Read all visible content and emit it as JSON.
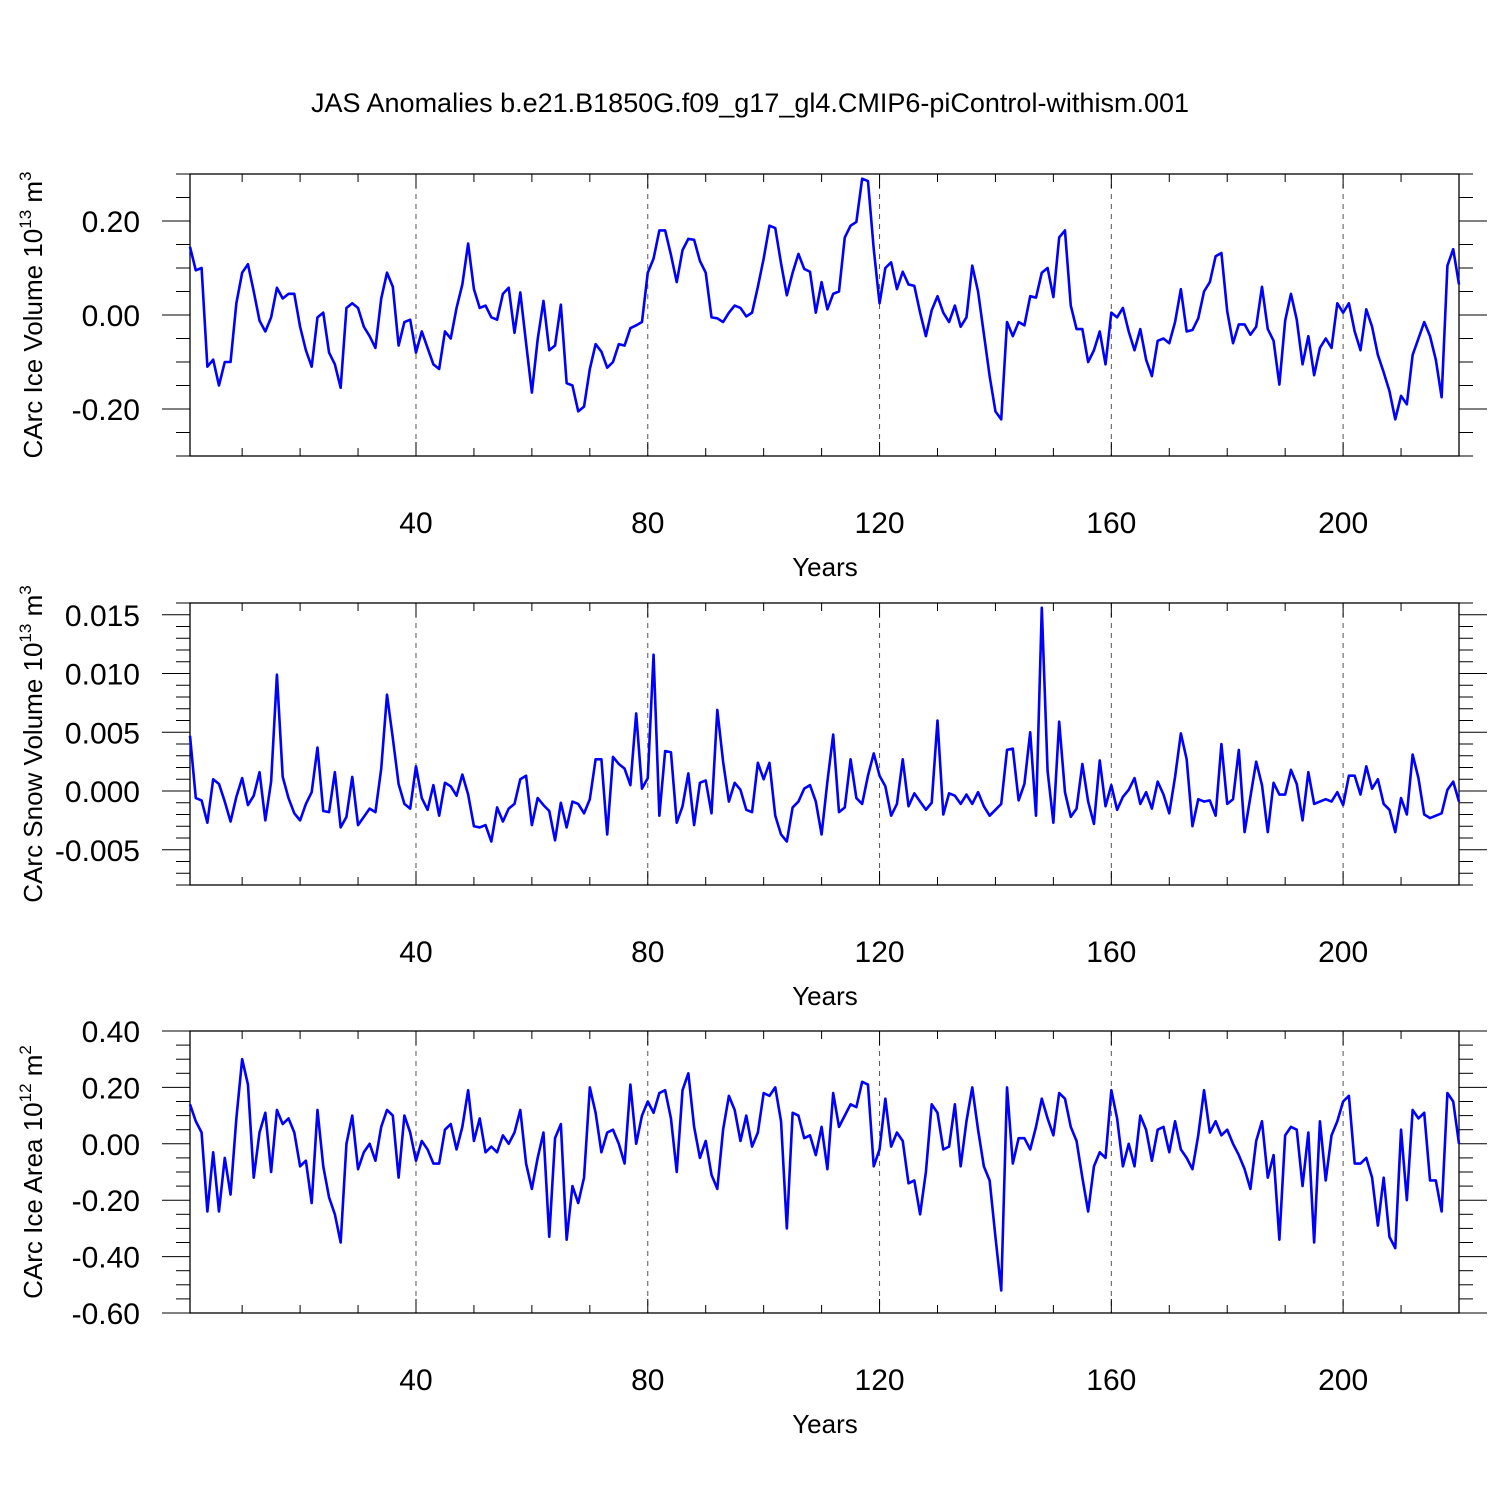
{
  "title": "JAS Anomalies b.e21.B1850G.f09_g17_gl4.CMIP6-piControl-withism.001",
  "line_color": "#0000ff",
  "chart_data": [
    {
      "type": "line",
      "ylabel": "CArc Ice Volume 10",
      "ylabel_sup": "13",
      "ylabel_unit": " m",
      "ylabel_unit_sup": "3",
      "xlabel": "Years",
      "xlim": [
        1,
        220
      ],
      "ylim": [
        -0.3,
        0.3
      ],
      "xticks": [
        40,
        80,
        120,
        160,
        200
      ],
      "xtick_labels": [
        "40",
        "80",
        "120",
        "160",
        "200"
      ],
      "yticks": [
        -0.2,
        0.0,
        0.2
      ],
      "ytick_labels": [
        "-0.20",
        "0.00",
        "0.20"
      ],
      "yminor_step": 0.05,
      "xminor_step": 10,
      "series": [
        {
          "x_start": 1,
          "values": [
            0.145,
            0.095,
            0.1,
            -0.11,
            -0.095,
            -0.15,
            -0.1,
            -0.1,
            0.025,
            0.09,
            0.108,
            0.05,
            -0.012,
            -0.035,
            -0.005,
            0.058,
            0.035,
            0.045,
            0.045,
            -0.025,
            -0.075,
            -0.11,
            -0.005,
            0.005,
            -0.08,
            -0.105,
            -0.155,
            0.015,
            0.025,
            0.015,
            -0.025,
            -0.045,
            -0.07,
            0.035,
            0.09,
            0.06,
            -0.065,
            -0.015,
            -0.01,
            -0.08,
            -0.035,
            -0.07,
            -0.105,
            -0.115,
            -0.035,
            -0.05,
            0.015,
            0.065,
            0.152,
            0.055,
            0.015,
            0.02,
            -0.005,
            -0.01,
            0.045,
            0.058,
            -0.038,
            0.048,
            -0.06,
            -0.165,
            -0.052,
            0.03,
            -0.075,
            -0.065,
            0.022,
            -0.145,
            -0.15,
            -0.205,
            -0.195,
            -0.115,
            -0.062,
            -0.078,
            -0.112,
            -0.1,
            -0.062,
            -0.065,
            -0.028,
            -0.022,
            -0.015,
            0.09,
            0.12,
            0.18,
            0.18,
            0.128,
            0.07,
            0.138,
            0.162,
            0.16,
            0.115,
            0.09,
            -0.005,
            -0.007,
            -0.015,
            0.005,
            0.02,
            0.015,
            -0.003,
            0.005,
            0.06,
            0.12,
            0.19,
            0.185,
            0.11,
            0.042,
            0.09,
            0.13,
            0.098,
            0.092,
            0.005,
            0.07,
            0.012,
            0.045,
            0.05,
            0.165,
            0.19,
            0.198,
            0.29,
            0.285,
            0.14,
            0.025,
            0.1,
            0.112,
            0.055,
            0.092,
            0.065,
            0.062,
            0.005,
            -0.045,
            0.01,
            0.04,
            0.005,
            -0.015,
            0.02,
            -0.025,
            -0.005,
            0.105,
            0.05,
            -0.04,
            -0.13,
            -0.205,
            -0.222,
            -0.015,
            -0.045,
            -0.015,
            -0.022,
            0.04,
            0.037,
            0.09,
            0.1,
            0.038,
            0.165,
            0.18,
            0.02,
            -0.03,
            -0.03,
            -0.1,
            -0.075,
            -0.035,
            -0.105,
            0.005,
            -0.005,
            0.015,
            -0.035,
            -0.075,
            -0.03,
            -0.095,
            -0.13,
            -0.055,
            -0.05,
            -0.06,
            -0.015,
            0.055,
            -0.035,
            -0.032,
            -0.007,
            0.05,
            0.07,
            0.125,
            0.132,
            0.008,
            -0.06,
            -0.02,
            -0.02,
            -0.042,
            -0.025,
            0.06,
            -0.03,
            -0.055,
            -0.148,
            -0.012,
            0.045,
            -0.01,
            -0.105,
            -0.045,
            -0.128,
            -0.07,
            -0.05,
            -0.07,
            0.025,
            0.005,
            0.025,
            -0.035,
            -0.075,
            0.012,
            -0.025,
            -0.085,
            -0.122,
            -0.162,
            -0.222,
            -0.172,
            -0.19,
            -0.085,
            -0.05,
            -0.015,
            -0.045,
            -0.095,
            -0.175,
            0.105,
            0.14,
            0.065
          ]
        }
      ]
    },
    {
      "type": "line",
      "ylabel": "CArc Snow Volume 10",
      "ylabel_sup": "13",
      "ylabel_unit": " m",
      "ylabel_unit_sup": "3",
      "xlabel": "Years",
      "xlim": [
        1,
        220
      ],
      "ylim": [
        -0.008,
        0.016
      ],
      "xticks": [
        40,
        80,
        120,
        160,
        200
      ],
      "xtick_labels": [
        "40",
        "80",
        "120",
        "160",
        "200"
      ],
      "yticks": [
        -0.005,
        0.0,
        0.005,
        0.01,
        0.015
      ],
      "ytick_labels": [
        "-0.005",
        "0.000",
        "0.005",
        "0.010",
        "0.015"
      ],
      "yminor_step": 0.001,
      "xminor_step": 10,
      "series": [
        {
          "x_start": 1,
          "values": [
            0.0047,
            -0.0006,
            -0.0008,
            -0.0027,
            0.001,
            0.0006,
            -0.0009,
            -0.0026,
            -0.0005,
            0.0011,
            -0.0012,
            -0.0004,
            0.0016,
            -0.0025,
            0.0008,
            0.0099,
            0.0012,
            -0.0006,
            -0.0019,
            -0.0025,
            -0.0011,
            -0.0001,
            0.0037,
            -0.0017,
            -0.0018,
            0.0016,
            -0.0031,
            -0.0022,
            0.0012,
            -0.0029,
            -0.0022,
            -0.0015,
            -0.0018,
            0.0019,
            0.0082,
            0.0045,
            0.0006,
            -0.0011,
            -0.0015,
            0.0021,
            -0.0006,
            -0.0016,
            0.0005,
            -0.0021,
            0.0007,
            0.0004,
            -0.0004,
            0.0014,
            -0.0003,
            -0.003,
            -0.0031,
            -0.0029,
            -0.0043,
            -0.0014,
            -0.0026,
            -0.0015,
            -0.0011,
            0.001,
            0.0013,
            -0.0029,
            -0.0006,
            -0.0012,
            -0.0017,
            -0.0042,
            -0.001,
            -0.0031,
            -0.0009,
            -0.0011,
            -0.0019,
            -0.0007,
            0.0027,
            0.0027,
            -0.0037,
            0.0029,
            0.0023,
            0.0019,
            0.0005,
            0.0066,
            0.0002,
            0.0011,
            0.0116,
            -0.0021,
            0.0034,
            0.0033,
            -0.0027,
            -0.0013,
            0.0015,
            -0.0029,
            0.0007,
            0.0009,
            -0.0019,
            0.0069,
            0.0025,
            -0.0009,
            0.0007,
            0.0001,
            -0.0016,
            -0.0018,
            0.0024,
            0.001,
            0.0024,
            -0.0021,
            -0.0037,
            -0.0043,
            -0.0014,
            -0.0009,
            0.0002,
            0.0005,
            -0.0009,
            -0.0037,
            0.0008,
            0.0048,
            -0.0018,
            -0.0014,
            0.0027,
            -0.0006,
            -0.0011,
            0.0013,
            0.0032,
            0.0013,
            0.0004,
            -0.0021,
            -0.0011,
            0.0027,
            -0.0013,
            -0.0002,
            -0.0009,
            -0.0016,
            -0.001,
            0.006,
            -0.002,
            -0.0002,
            -0.0004,
            -0.0011,
            -0.0003,
            -0.0011,
            -0.0001,
            -0.0013,
            -0.0021,
            -0.0016,
            -0.0011,
            0.0035,
            0.0036,
            -0.0008,
            0.0006,
            0.005,
            -0.0021,
            0.0156,
            0.0017,
            -0.0027,
            0.0059,
            -0.0001,
            -0.0022,
            -0.0015,
            0.0023,
            -0.0009,
            -0.0028,
            0.0026,
            -0.0013,
            0.0005,
            -0.0016,
            -0.0005,
            0.0001,
            0.0011,
            -0.0011,
            -0.0001,
            -0.0015,
            0.0008,
            -0.0003,
            -0.0019,
            0.0012,
            0.0049,
            0.0027,
            -0.003,
            -0.0007,
            -0.0009,
            -0.0008,
            -0.0021,
            0.004,
            -0.0011,
            -0.0007,
            0.0035,
            -0.0035,
            -0.0005,
            0.0025,
            0.0005,
            -0.0035,
            0.0007,
            -0.0003,
            -0.0003,
            0.0018,
            0.0006,
            -0.0025,
            0.0016,
            -0.0011,
            -0.0009,
            -0.0007,
            -0.0009,
            -0.0001,
            -0.0012,
            0.0013,
            0.0013,
            -0.0003,
            0.0021,
            0.0002,
            0.001,
            -0.0011,
            -0.0016,
            -0.0035,
            -0.0006,
            -0.002,
            0.0031,
            0.0011,
            -0.002,
            -0.0023,
            -0.0021,
            -0.0019,
            0.0001,
            0.0008,
            -0.0009
          ]
        }
      ]
    },
    {
      "type": "line",
      "ylabel": "CArc Ice Area 10",
      "ylabel_sup": "12",
      "ylabel_unit": " m",
      "ylabel_unit_sup": "2",
      "xlabel": "Years",
      "xlim": [
        1,
        220
      ],
      "ylim": [
        -0.6,
        0.4
      ],
      "xticks": [
        40,
        80,
        120,
        160,
        200
      ],
      "xtick_labels": [
        "40",
        "80",
        "120",
        "160",
        "200"
      ],
      "yticks": [
        -0.6,
        -0.4,
        -0.2,
        0.0,
        0.2,
        0.4
      ],
      "ytick_labels": [
        "-0.60",
        "-0.40",
        "-0.20",
        "0.00",
        "0.20",
        "0.40"
      ],
      "yminor_step": 0.05,
      "xminor_step": 10,
      "series": [
        {
          "x_start": 1,
          "values": [
            0.14,
            0.08,
            0.04,
            -0.24,
            -0.03,
            -0.24,
            -0.05,
            -0.18,
            0.09,
            0.3,
            0.21,
            -0.12,
            0.04,
            0.11,
            -0.1,
            0.12,
            0.07,
            0.09,
            0.04,
            -0.08,
            -0.06,
            -0.21,
            0.12,
            -0.08,
            -0.19,
            -0.25,
            -0.35,
            0.0,
            0.1,
            -0.09,
            -0.03,
            0.0,
            -0.06,
            0.06,
            0.12,
            0.1,
            -0.12,
            0.1,
            0.04,
            -0.06,
            0.01,
            -0.02,
            -0.07,
            -0.07,
            0.05,
            0.07,
            -0.02,
            0.06,
            0.19,
            0.01,
            0.09,
            -0.03,
            -0.01,
            -0.03,
            0.03,
            0.0,
            0.04,
            0.12,
            -0.07,
            -0.16,
            -0.05,
            0.04,
            -0.33,
            0.02,
            0.07,
            -0.34,
            -0.15,
            -0.21,
            -0.12,
            0.2,
            0.11,
            -0.03,
            0.04,
            0.05,
            0.0,
            -0.07,
            0.21,
            0.0,
            0.1,
            0.15,
            0.11,
            0.18,
            0.19,
            0.09,
            -0.1,
            0.19,
            0.25,
            0.06,
            -0.05,
            0.01,
            -0.11,
            -0.16,
            0.05,
            0.17,
            0.12,
            0.01,
            0.1,
            -0.01,
            0.04,
            0.18,
            0.17,
            0.2,
            0.08,
            -0.3,
            0.11,
            0.1,
            0.02,
            0.03,
            -0.04,
            0.06,
            -0.09,
            0.18,
            0.06,
            0.1,
            0.14,
            0.13,
            0.22,
            0.21,
            -0.08,
            -0.02,
            0.16,
            -0.01,
            0.04,
            0.01,
            -0.14,
            -0.13,
            -0.25,
            -0.1,
            0.14,
            0.11,
            -0.02,
            -0.01,
            0.14,
            -0.08,
            0.08,
            0.2,
            0.05,
            -0.08,
            -0.13,
            -0.33,
            -0.52,
            0.2,
            -0.07,
            0.02,
            0.02,
            -0.02,
            0.06,
            0.16,
            0.09,
            0.03,
            0.18,
            0.16,
            0.06,
            0.01,
            -0.12,
            -0.24,
            -0.08,
            -0.03,
            -0.05,
            0.19,
            0.09,
            -0.08,
            0.0,
            -0.08,
            0.1,
            0.05,
            -0.06,
            0.05,
            0.06,
            -0.03,
            0.08,
            -0.02,
            -0.05,
            -0.09,
            0.03,
            0.19,
            0.04,
            0.08,
            0.03,
            0.05,
            0.0,
            -0.04,
            -0.09,
            -0.16,
            0.01,
            0.08,
            -0.12,
            -0.04,
            -0.34,
            0.03,
            0.06,
            0.05,
            -0.15,
            0.04,
            -0.35,
            0.08,
            -0.13,
            0.03,
            0.08,
            0.15,
            0.17,
            -0.07,
            -0.07,
            -0.05,
            -0.12,
            -0.29,
            -0.12,
            -0.33,
            -0.37,
            0.05,
            -0.2,
            0.12,
            0.09,
            0.11,
            -0.13,
            -0.13,
            -0.24,
            0.18,
            0.15,
            0.0
          ]
        }
      ]
    }
  ]
}
